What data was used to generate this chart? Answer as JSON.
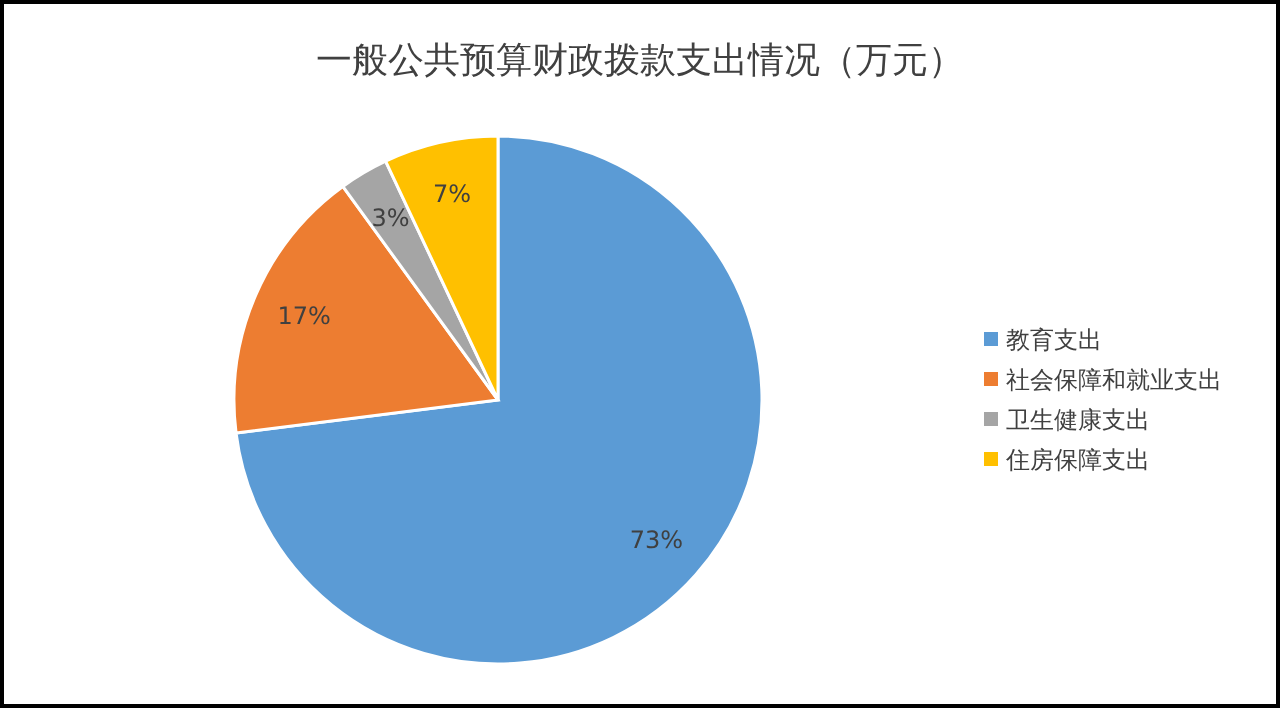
{
  "chart_data": {
    "type": "pie",
    "title": "一般公共预算财政拨款支出情况（万元）",
    "categories": [
      "教育支出",
      "社会保障和就业支出",
      "卫生健康支出",
      "住房保障支出"
    ],
    "values": [
      73,
      17,
      3,
      7
    ],
    "colors": [
      "#5b9bd5",
      "#ed7d31",
      "#a5a5a5",
      "#ffc000"
    ],
    "value_labels": [
      "73%",
      "17%",
      "3%",
      "7%"
    ],
    "legend": "right"
  }
}
